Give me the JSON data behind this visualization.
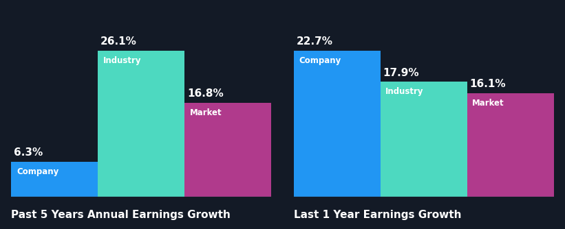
{
  "background_color": "#131a26",
  "group1": {
    "title": "Past 5 Years Annual Earnings Growth",
    "bars": [
      {
        "label": "Company",
        "value": 6.3,
        "color": "#2196f3"
      },
      {
        "label": "Industry",
        "value": 26.1,
        "color": "#4dd9c0"
      },
      {
        "label": "Market",
        "value": 16.8,
        "color": "#b03a8c"
      }
    ]
  },
  "group2": {
    "title": "Last 1 Year Earnings Growth",
    "bars": [
      {
        "label": "Company",
        "value": 22.7,
        "color": "#2196f3"
      },
      {
        "label": "Industry",
        "value": 17.9,
        "color": "#4dd9c0"
      },
      {
        "label": "Market",
        "value": 16.1,
        "color": "#b03a8c"
      }
    ]
  },
  "text_color": "#ffffff",
  "label_color_dark": "#1a2a3a",
  "label_fontsize": 8.5,
  "value_fontsize": 11,
  "title_fontsize": 11,
  "bottom_line_color": "#3a4a5a"
}
